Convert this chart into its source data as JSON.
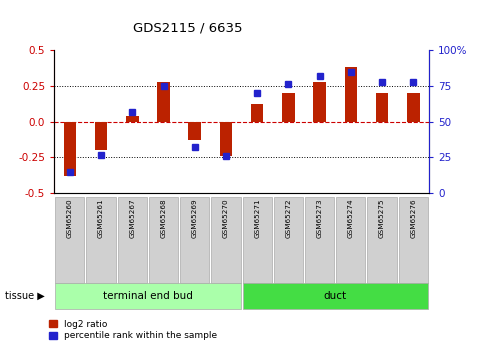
{
  "title": "GDS2115 / 6635",
  "samples": [
    "GSM65260",
    "GSM65261",
    "GSM65267",
    "GSM65268",
    "GSM65269",
    "GSM65270",
    "GSM65271",
    "GSM65272",
    "GSM65273",
    "GSM65274",
    "GSM65275",
    "GSM65276"
  ],
  "log2_ratio": [
    -0.38,
    -0.2,
    0.04,
    0.28,
    -0.13,
    -0.24,
    0.12,
    0.2,
    0.28,
    0.38,
    0.2,
    0.2
  ],
  "percentile": [
    15,
    27,
    57,
    75,
    32,
    26,
    70,
    76,
    82,
    85,
    78,
    78
  ],
  "tissue_groups": [
    {
      "label": "terminal end bud",
      "start": 0,
      "end": 5,
      "color": "#AAFFAA"
    },
    {
      "label": "duct",
      "start": 6,
      "end": 11,
      "color": "#44DD44"
    }
  ],
  "bar_color_red": "#BB2200",
  "bar_color_blue": "#2222CC",
  "ylim": [
    -0.5,
    0.5
  ],
  "y2lim": [
    0,
    100
  ],
  "yticks": [
    -0.5,
    -0.25,
    0.0,
    0.25,
    0.5
  ],
  "y2ticks": [
    0,
    25,
    50,
    75,
    100
  ],
  "hlines_dotted": [
    -0.25,
    0.25
  ],
  "hline_dashed": 0.0,
  "left_axis_color": "#CC0000",
  "right_axis_color": "#2222CC",
  "bg_color": "#FFFFFF",
  "sample_bg": "#D0D0D0",
  "legend_log2": "log2 ratio",
  "legend_pct": "percentile rank within the sample"
}
